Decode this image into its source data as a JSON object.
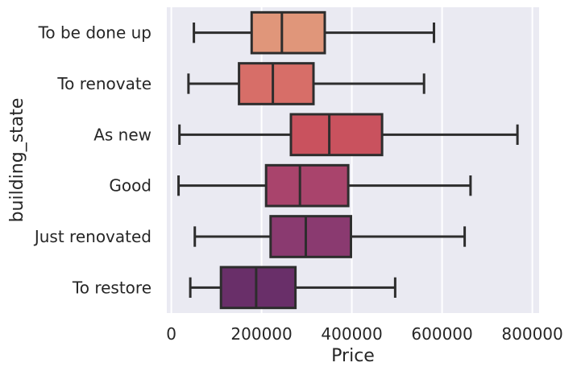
{
  "chart_data": {
    "type": "boxplot",
    "orientation": "horizontal",
    "title": "",
    "xlabel": "Price",
    "ylabel": "building_state",
    "xlim": [
      -10000,
      815000
    ],
    "xticks": [
      0,
      200000,
      400000,
      600000,
      800000
    ],
    "xtick_labels": [
      "0",
      "200000",
      "400000",
      "600000",
      "800000"
    ],
    "grid": true,
    "legend": "none",
    "background": "#eaeaf2",
    "categories": [
      "To be done up",
      "To renovate",
      "As new",
      "Good",
      "Just renovated",
      "To restore"
    ],
    "boxes": [
      {
        "category": "To be done up",
        "whisker_low": 50000,
        "q1": 178000,
        "median": 245000,
        "q3": 340000,
        "whisker_high": 582000,
        "color": "#e0967a"
      },
      {
        "category": "To renovate",
        "whisker_low": 38000,
        "q1": 150000,
        "median": 225000,
        "q3": 315000,
        "whisker_high": 560000,
        "color": "#d76e68"
      },
      {
        "category": "As new",
        "whisker_low": 18000,
        "q1": 265000,
        "median": 350000,
        "q3": 467000,
        "whisker_high": 767000,
        "color": "#c9525e"
      },
      {
        "category": "Good",
        "whisker_low": 16000,
        "q1": 210000,
        "median": 285000,
        "q3": 392000,
        "whisker_high": 663000,
        "color": "#a9446c"
      },
      {
        "category": "Just renovated",
        "whisker_low": 52000,
        "q1": 220000,
        "median": 298000,
        "q3": 398000,
        "whisker_high": 650000,
        "color": "#8a3a70"
      },
      {
        "category": "To restore",
        "whisker_low": 42000,
        "q1": 110000,
        "median": 188000,
        "q3": 275000,
        "whisker_high": 496000,
        "color": "#692f69"
      }
    ]
  }
}
